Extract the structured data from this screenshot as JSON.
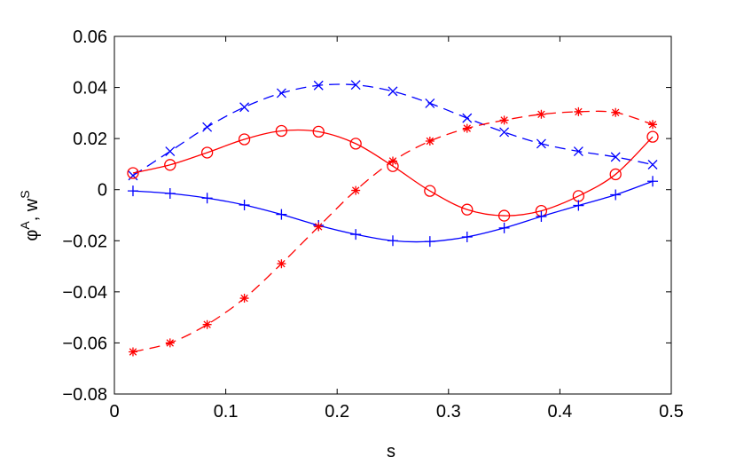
{
  "chart_data": {
    "type": "line",
    "title": "",
    "xlabel": "s",
    "ylabel": {
      "base1": "φ",
      "sup1": "A",
      "sep": ", ",
      "base2": "w",
      "sup2": "S"
    },
    "xlim": [
      0,
      0.5
    ],
    "ylim": [
      -0.08,
      0.06
    ],
    "grid": false,
    "legend": "none",
    "xticks": [
      0,
      0.1,
      0.2,
      0.3,
      0.4,
      0.5
    ],
    "xtick_labels": [
      "0",
      "0.1",
      "0.2",
      "0.3",
      "0.4",
      "0.5"
    ],
    "yticks": [
      -0.08,
      -0.06,
      -0.04,
      -0.02,
      0,
      0.02,
      0.04,
      0.06
    ],
    "ytick_labels": [
      "−0.08",
      "−0.06",
      "−0.04",
      "−0.02",
      "0",
      "0.02",
      "0.04",
      "0.06"
    ],
    "x": [
      0.0167,
      0.05,
      0.0833,
      0.1167,
      0.15,
      0.1833,
      0.2167,
      0.25,
      0.2833,
      0.3167,
      0.35,
      0.3833,
      0.4167,
      0.45,
      0.4833
    ],
    "series": [
      {
        "color": "#0000ff",
        "line": "dashed",
        "marker": "x",
        "values": [
          0.0055,
          0.015,
          0.0245,
          0.0323,
          0.0378,
          0.0408,
          0.041,
          0.0385,
          0.0338,
          0.028,
          0.0225,
          0.018,
          0.015,
          0.0128,
          0.0098
        ]
      },
      {
        "color": "#ff0000",
        "line": "solid",
        "marker": "o",
        "values": [
          0.0065,
          0.0097,
          0.0145,
          0.0197,
          0.023,
          0.0227,
          0.018,
          0.0092,
          -0.0005,
          -0.0078,
          -0.0102,
          -0.0083,
          -0.0025,
          0.006,
          0.0207
        ]
      },
      {
        "color": "#0000ff",
        "line": "solid",
        "marker": "+",
        "values": [
          -0.0005,
          -0.0015,
          -0.0033,
          -0.006,
          -0.0097,
          -0.014,
          -0.0175,
          -0.02,
          -0.0203,
          -0.0185,
          -0.015,
          -0.0105,
          -0.0062,
          -0.002,
          0.0033
        ]
      },
      {
        "color": "#ff0000",
        "line": "dashed",
        "marker": "*",
        "values": [
          -0.0635,
          -0.06,
          -0.0528,
          -0.0425,
          -0.029,
          -0.0145,
          -0.0003,
          0.0112,
          0.019,
          0.024,
          0.0272,
          0.0295,
          0.0305,
          0.0302,
          0.0255
        ]
      }
    ]
  }
}
